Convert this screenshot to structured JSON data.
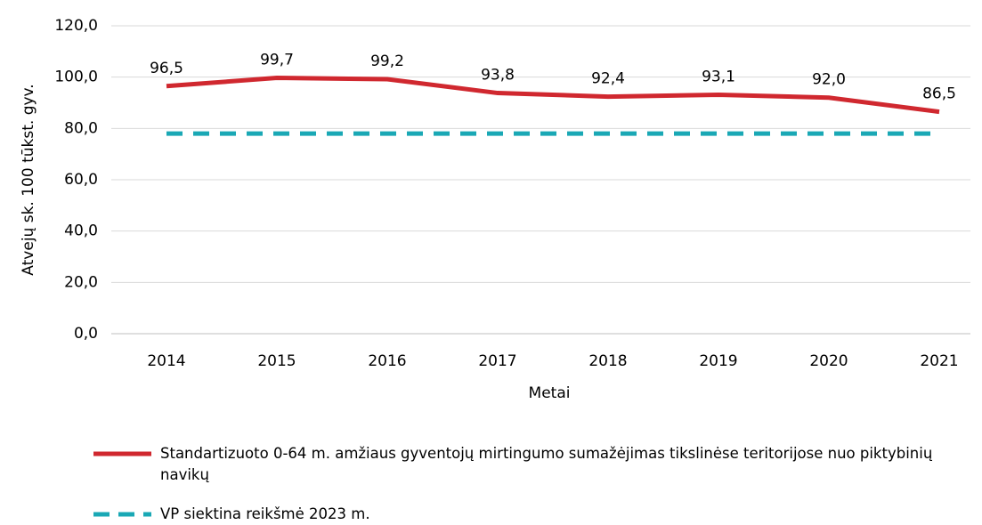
{
  "chart_data": {
    "type": "line",
    "y_label": "Atvejų sk. 100 tūkst. gyv.",
    "x_label": "Metai",
    "categories": [
      "2014",
      "2015",
      "2016",
      "2017",
      "2018",
      "2019",
      "2020",
      "2021"
    ],
    "series": [
      {
        "name": "Standartizuoto 0-64 m. amžiaus gyventojų mirtingumo sumažėjimas tikslinėse teritorijose nuo piktybinių navikų",
        "color": "#d0282f",
        "style": "solid",
        "values": [
          96.5,
          99.7,
          99.2,
          93.8,
          92.4,
          93.1,
          92.0,
          86.5
        ],
        "value_labels": [
          "96,5",
          "99,7",
          "99,2",
          "93,8",
          "92,4",
          "93,1",
          "92,0",
          "86,5"
        ]
      },
      {
        "name": "VP siektina reikšmė 2023 m.",
        "color": "#1aa8b5",
        "style": "dashed",
        "values": [
          78,
          78,
          78,
          78,
          78,
          78,
          78,
          78
        ]
      }
    ],
    "ylim": [
      0,
      120
    ],
    "yticks": [
      {
        "value": 0,
        "label": "0,0"
      },
      {
        "value": 20,
        "label": "20,0"
      },
      {
        "value": 40,
        "label": "40,0"
      },
      {
        "value": 60,
        "label": "60,0"
      },
      {
        "value": 80,
        "label": "80,0"
      },
      {
        "value": 100,
        "label": "100,0"
      },
      {
        "value": 120,
        "label": "120,0"
      }
    ],
    "grid": true
  }
}
